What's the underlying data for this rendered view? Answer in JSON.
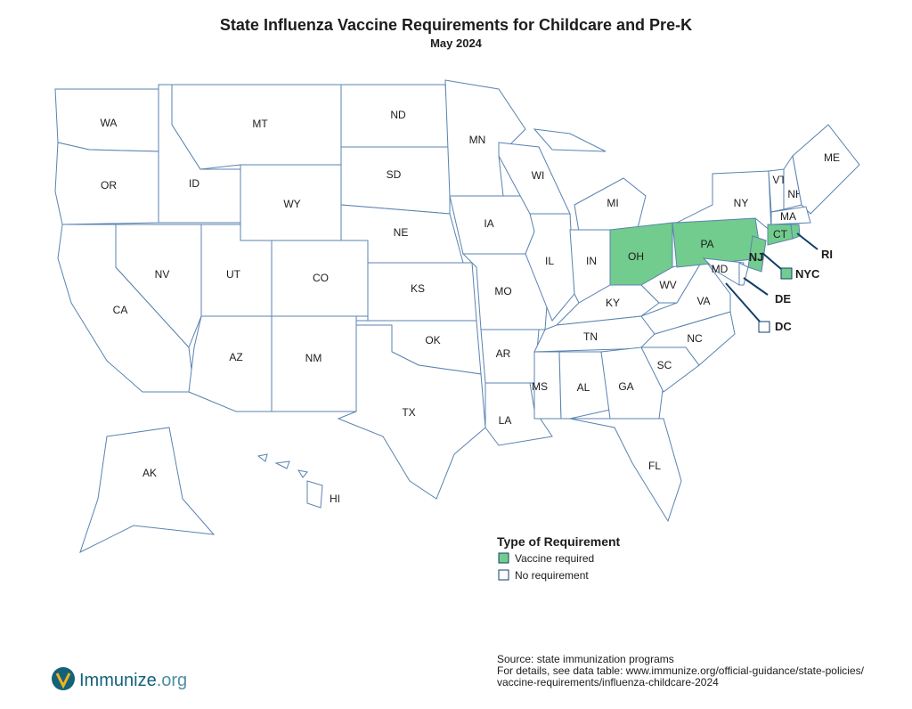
{
  "header": {
    "title": "State Influenza Vaccine Requirements for Childcare and Pre-K",
    "subtitle": "May 2024"
  },
  "map": {
    "regions": [
      {
        "label": "WA",
        "required": false
      },
      {
        "label": "OR",
        "required": false
      },
      {
        "label": "CA",
        "required": false
      },
      {
        "label": "NV",
        "required": false
      },
      {
        "label": "ID",
        "required": false
      },
      {
        "label": "MT",
        "required": false
      },
      {
        "label": "WY",
        "required": false
      },
      {
        "label": "UT",
        "required": false
      },
      {
        "label": "CO",
        "required": false
      },
      {
        "label": "AZ",
        "required": false
      },
      {
        "label": "NM",
        "required": false
      },
      {
        "label": "ND",
        "required": false
      },
      {
        "label": "SD",
        "required": false
      },
      {
        "label": "NE",
        "required": false
      },
      {
        "label": "KS",
        "required": false
      },
      {
        "label": "OK",
        "required": false
      },
      {
        "label": "TX",
        "required": false
      },
      {
        "label": "MN",
        "required": false
      },
      {
        "label": "IA",
        "required": false
      },
      {
        "label": "MO",
        "required": false
      },
      {
        "label": "AR",
        "required": false
      },
      {
        "label": "LA",
        "required": false
      },
      {
        "label": "WI",
        "required": false
      },
      {
        "label": "IL",
        "required": false
      },
      {
        "label": "MI",
        "required": false
      },
      {
        "label": "IN",
        "required": false
      },
      {
        "label": "OH",
        "required": true
      },
      {
        "label": "KY",
        "required": false
      },
      {
        "label": "TN",
        "required": false
      },
      {
        "label": "MS",
        "required": false
      },
      {
        "label": "AL",
        "required": false
      },
      {
        "label": "GA",
        "required": false
      },
      {
        "label": "FL",
        "required": false
      },
      {
        "label": "SC",
        "required": false
      },
      {
        "label": "NC",
        "required": false
      },
      {
        "label": "VA",
        "required": false
      },
      {
        "label": "WV",
        "required": false
      },
      {
        "label": "PA",
        "required": true
      },
      {
        "label": "NY",
        "required": false
      },
      {
        "label": "NJ",
        "required": true
      },
      {
        "label": "MD",
        "required": false
      },
      {
        "label": "DE",
        "required": false
      },
      {
        "label": "VT",
        "required": false
      },
      {
        "label": "NH",
        "required": false
      },
      {
        "label": "ME",
        "required": false
      },
      {
        "label": "MA",
        "required": false
      },
      {
        "label": "CT",
        "required": true
      },
      {
        "label": "RI",
        "required": true
      },
      {
        "label": "AK",
        "required": false
      },
      {
        "label": "HI",
        "required": false
      },
      {
        "label": "NYC",
        "required": true
      },
      {
        "label": "DC",
        "required": false
      }
    ]
  },
  "legend": {
    "title": "Type of Requirement",
    "items": [
      {
        "label": "Vaccine required",
        "color": "#72cc8e"
      },
      {
        "label": "No requirement",
        "color": "#ffffff"
      }
    ]
  },
  "footer": {
    "source": "Source: state immunization programs",
    "details": [
      "For details, see data table: www.immunize.org/official-guidance/state-policies/",
      "vaccine-requirements/influenza-childcare-2024"
    ],
    "logo": [
      "Immunize",
      ".org"
    ]
  }
}
